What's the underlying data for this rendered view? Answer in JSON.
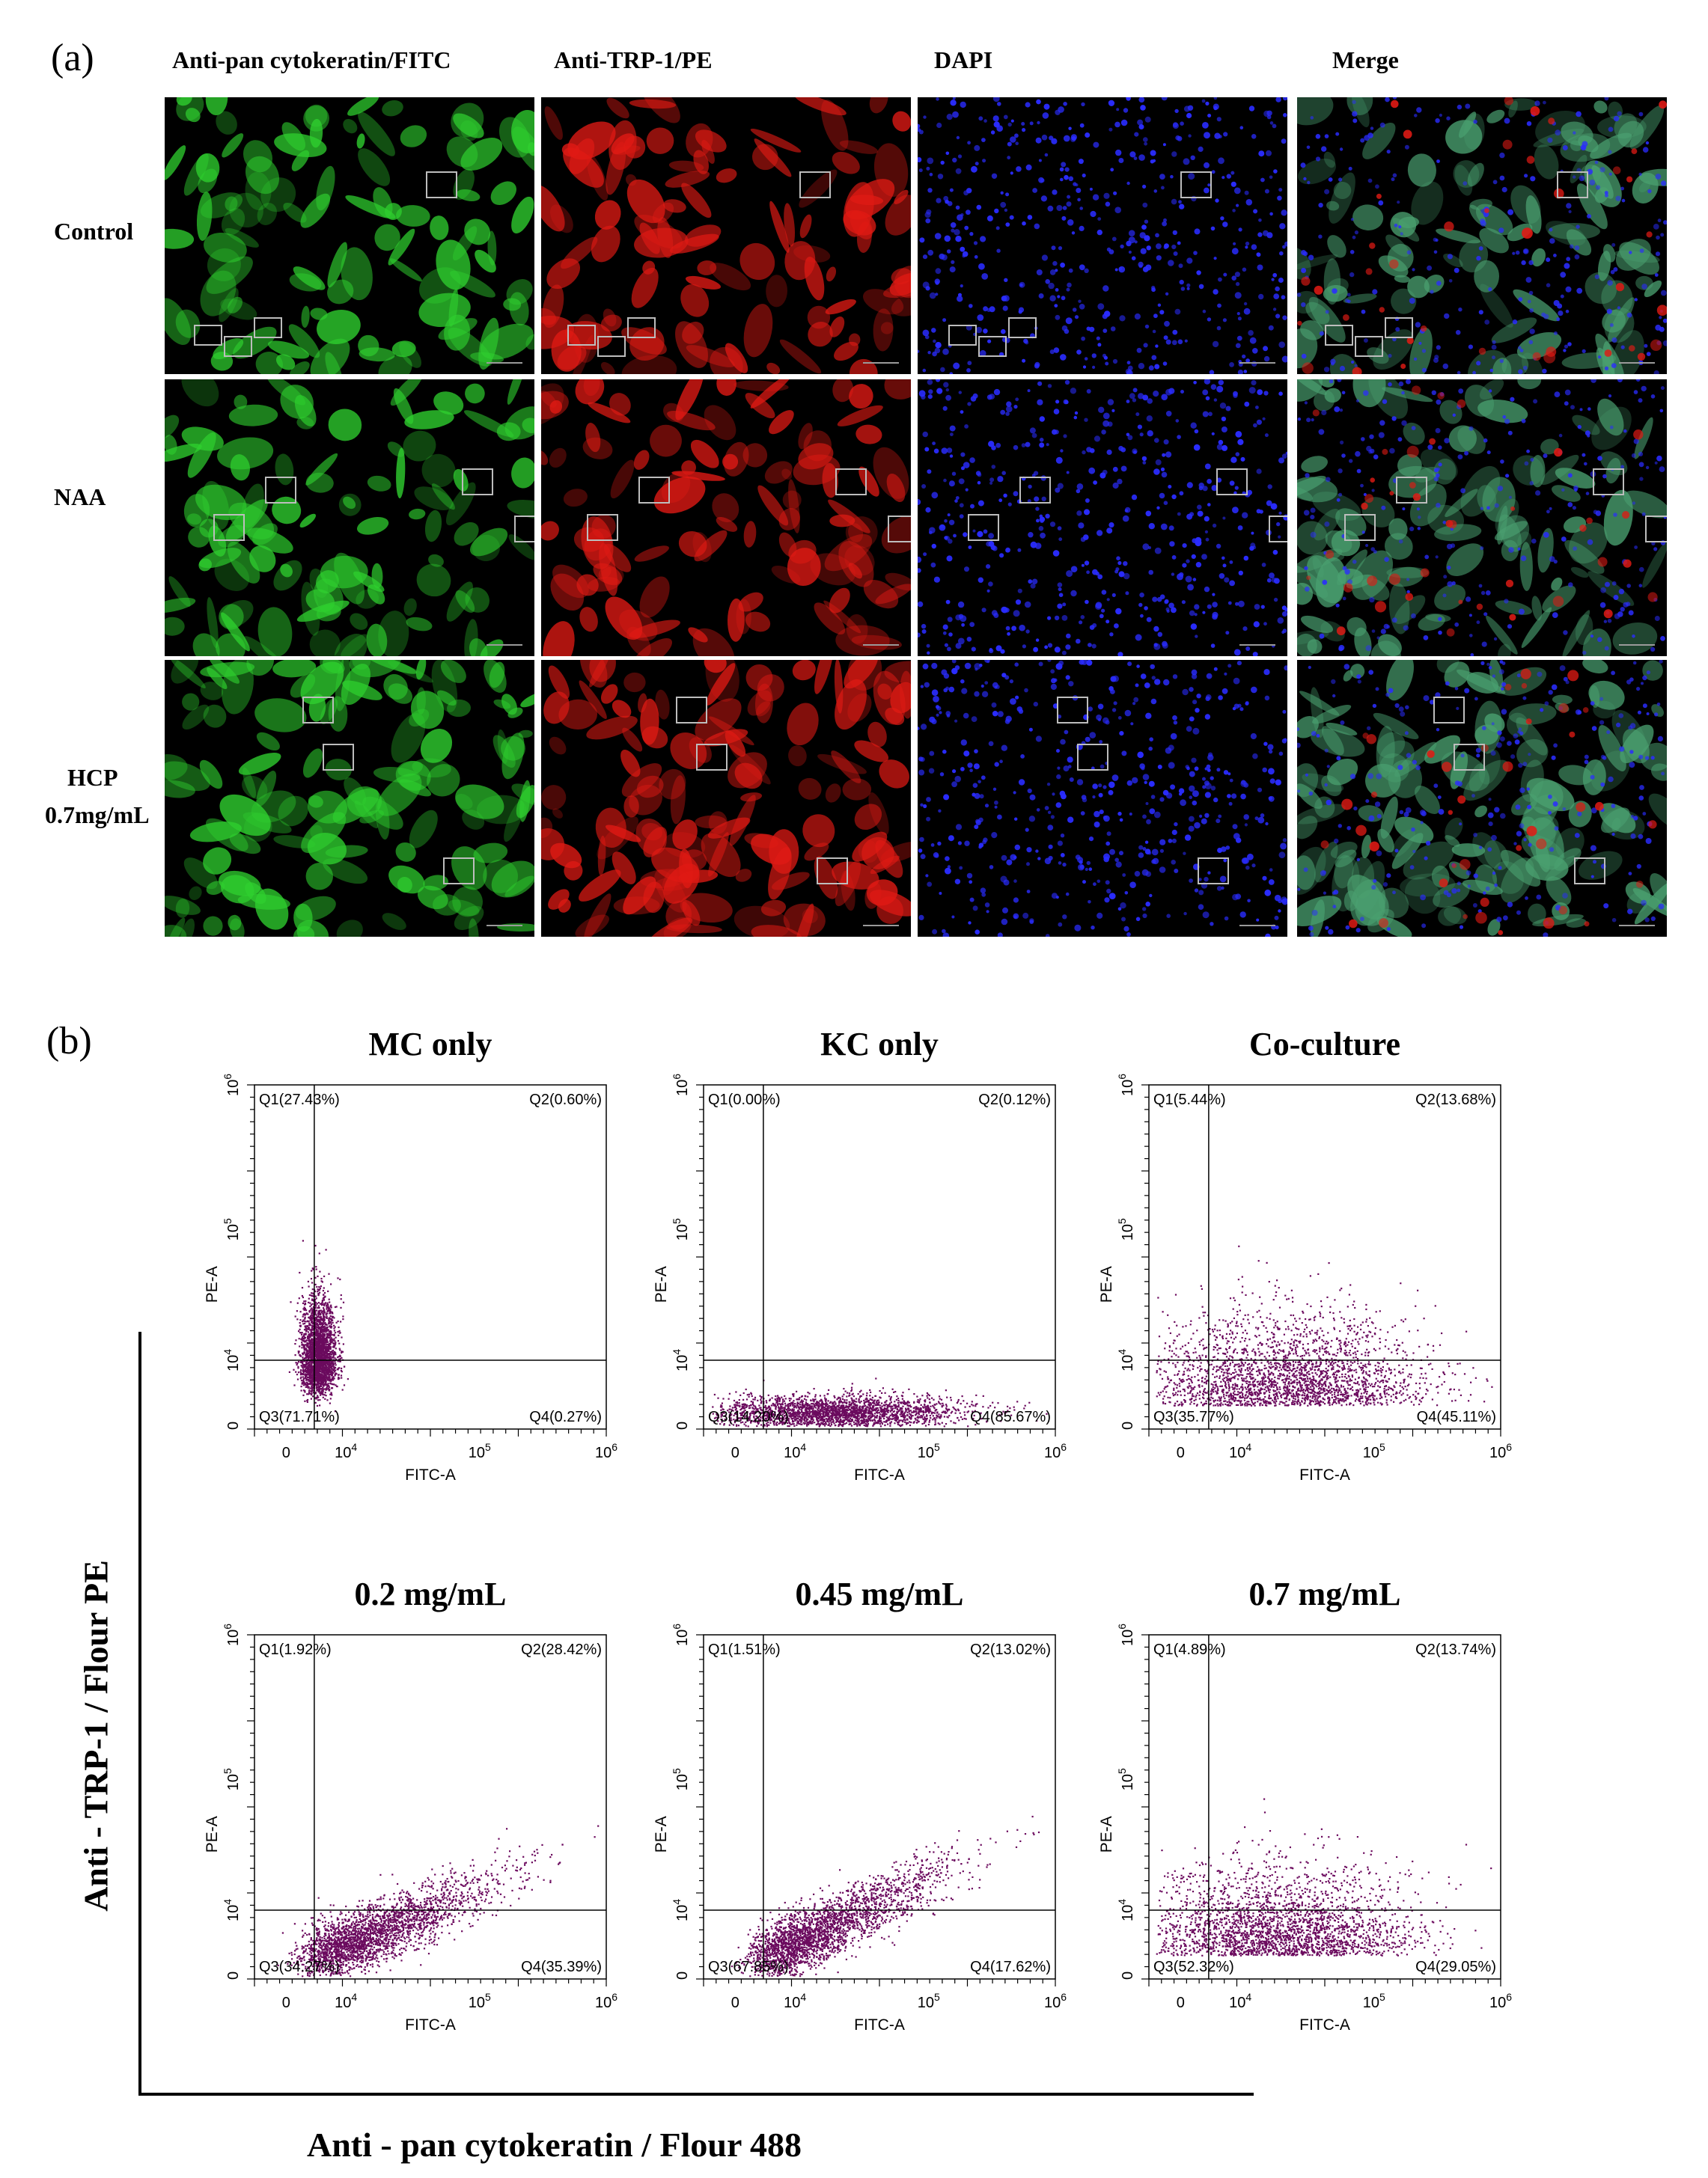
{
  "panel_a": {
    "letter": "(a)",
    "columns": [
      "Anti-pan cytokeratin/FITC",
      "Anti-TRP-1/PE",
      "DAPI",
      "Merge"
    ],
    "rows": [
      {
        "label_lines": [
          "Control"
        ]
      },
      {
        "label_lines": [
          "NAA"
        ]
      },
      {
        "label_lines": [
          "HCP",
          "0.7mg/mL"
        ]
      }
    ],
    "channel_colors": {
      "fitc": "#2fd02f",
      "pe": "#e01a14",
      "dapi": "#2a2cff",
      "merge": "#4aa070"
    }
  },
  "panel_b": {
    "letter": "(b)",
    "y_axis_label": "Anti - TRP-1 / Flour PE",
    "x_axis_label": "Anti - pan cytokeratin / Flour 488",
    "dot_color": "#6b0a5e"
  },
  "chart_data": [
    {
      "type": "scatter",
      "title": "MC only",
      "xlabel": "FITC-A",
      "ylabel": "PE-A",
      "x_ticks": [
        "0",
        "10^4",
        "10^5",
        "10^6"
      ],
      "y_ticks": [
        "0",
        "10^4",
        "10^5",
        "10^6"
      ],
      "quadrants": {
        "Q1": "Q1(27.43%)",
        "Q2": "Q2(0.60%)",
        "Q3": "Q3(71.71%)",
        "Q4": "Q4(0.27%)"
      },
      "cluster": {
        "x_center": 0.18,
        "y_center": 0.14,
        "x_spread": 0.025,
        "y_spread": 0.12,
        "shape": "vertical"
      }
    },
    {
      "type": "scatter",
      "title": "KC only",
      "xlabel": "FITC-A",
      "ylabel": "PE-A",
      "x_ticks": [
        "0",
        "10^4",
        "10^5",
        "10^6"
      ],
      "y_ticks": [
        "0",
        "10^4",
        "10^5",
        "10^6"
      ],
      "quadrants": {
        "Q1": "Q1(0.00%)",
        "Q2": "Q2(0.12%)",
        "Q3": "Q3(14.20%)",
        "Q4": "Q4(85.67%)"
      },
      "cluster": {
        "x_center": 0.38,
        "y_center": 0.05,
        "x_spread": 0.18,
        "y_spread": 0.025,
        "shape": "horizontal"
      }
    },
    {
      "type": "scatter",
      "title": "Co-culture",
      "xlabel": "FITC-A",
      "ylabel": "PE-A",
      "x_ticks": [
        "0",
        "10^4",
        "10^5",
        "10^6"
      ],
      "y_ticks": [
        "0",
        "10^4",
        "10^5",
        "10^6"
      ],
      "quadrants": {
        "Q1": "Q1(5.44%)",
        "Q2": "Q2(13.68%)",
        "Q3": "Q3(35.77%)",
        "Q4": "Q4(45.11%)"
      },
      "cluster": {
        "x_center": 0.38,
        "y_center": 0.1,
        "x_spread": 0.2,
        "y_spread": 0.09,
        "shape": "diffuse"
      }
    },
    {
      "type": "scatter",
      "title": "0.2 mg/mL",
      "xlabel": "FITC-A",
      "ylabel": "PE-A",
      "x_ticks": [
        "0",
        "10^4",
        "10^5",
        "10^6"
      ],
      "y_ticks": [
        "0",
        "10^4",
        "10^5",
        "10^6"
      ],
      "quadrants": {
        "Q1": "Q1(1.92%)",
        "Q2": "Q2(28.42%)",
        "Q3": "Q3(34.27%)",
        "Q4": "Q4(35.39%)"
      },
      "cluster": {
        "x_center": 0.4,
        "y_center": 0.16,
        "x_spread": 0.16,
        "y_spread": 0.07,
        "shape": "diagonal"
      }
    },
    {
      "type": "scatter",
      "title": "0.45 mg/mL",
      "xlabel": "FITC-A",
      "ylabel": "PE-A",
      "x_ticks": [
        "0",
        "10^4",
        "10^5",
        "10^6"
      ],
      "y_ticks": [
        "0",
        "10^4",
        "10^5",
        "10^6"
      ],
      "quadrants": {
        "Q1": "Q1(1.51%)",
        "Q2": "Q2(13.02%)",
        "Q3": "Q3(67.85%)",
        "Q4": "Q4(17.62%)"
      },
      "cluster": {
        "x_center": 0.3,
        "y_center": 0.12,
        "x_spread": 0.16,
        "y_spread": 0.08,
        "shape": "diagonal"
      }
    },
    {
      "type": "scatter",
      "title": "0.7 mg/mL",
      "xlabel": "FITC-A",
      "ylabel": "PE-A",
      "x_ticks": [
        "0",
        "10^4",
        "10^5",
        "10^6"
      ],
      "y_ticks": [
        "0",
        "10^4",
        "10^5",
        "10^6"
      ],
      "quadrants": {
        "Q1": "Q1(4.89%)",
        "Q2": "Q2(13.74%)",
        "Q3": "Q3(52.32%)",
        "Q4": "Q4(29.05%)"
      },
      "cluster": {
        "x_center": 0.36,
        "y_center": 0.11,
        "x_spread": 0.19,
        "y_spread": 0.09,
        "shape": "diffuse"
      }
    }
  ]
}
